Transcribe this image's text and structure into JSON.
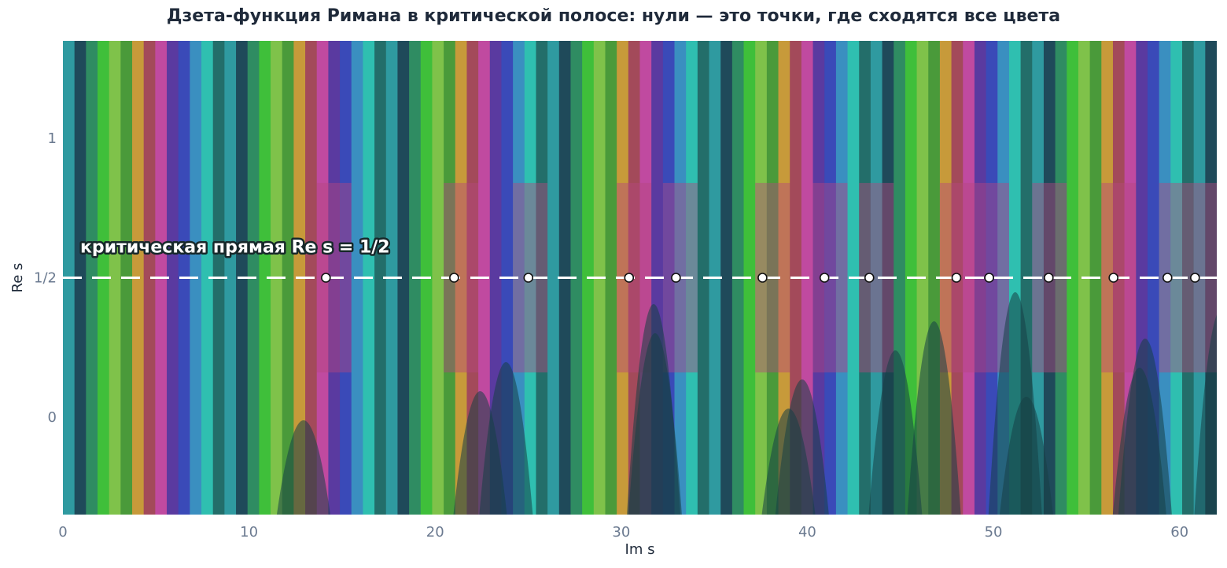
{
  "chart_data": {
    "type": "heatmap",
    "title": "Дзета-функция Римана в критической полосе: нули — это точки, где сходятся все цвета",
    "xlabel": "Im s",
    "ylabel": "Re s",
    "xlim": [
      0,
      62
    ],
    "ylim": [
      -0.35,
      1.35
    ],
    "x_ticks": [
      {
        "value": 0,
        "label": "0"
      },
      {
        "value": 10,
        "label": "10"
      },
      {
        "value": 20,
        "label": "20"
      },
      {
        "value": 30,
        "label": "30"
      },
      {
        "value": 40,
        "label": "40"
      },
      {
        "value": 50,
        "label": "50"
      },
      {
        "value": 60,
        "label": "60"
      }
    ],
    "y_ticks": [
      {
        "value": 0,
        "label": "0"
      },
      {
        "value": 0.5,
        "label": "1/2"
      },
      {
        "value": 1,
        "label": "1"
      }
    ],
    "critical_line": {
      "re": 0.5,
      "label": "критическая прямая  Re s = 1/2",
      "style": "dashed",
      "color": "#ffffff"
    },
    "zeros_im": [
      14.13,
      21.02,
      25.01,
      30.42,
      32.94,
      37.59,
      40.92,
      43.33,
      48.01,
      49.77,
      52.97,
      56.45,
      59.35,
      60.83
    ],
    "colormap": "phase (hue = argument of ζ(s))",
    "grid": false
  }
}
